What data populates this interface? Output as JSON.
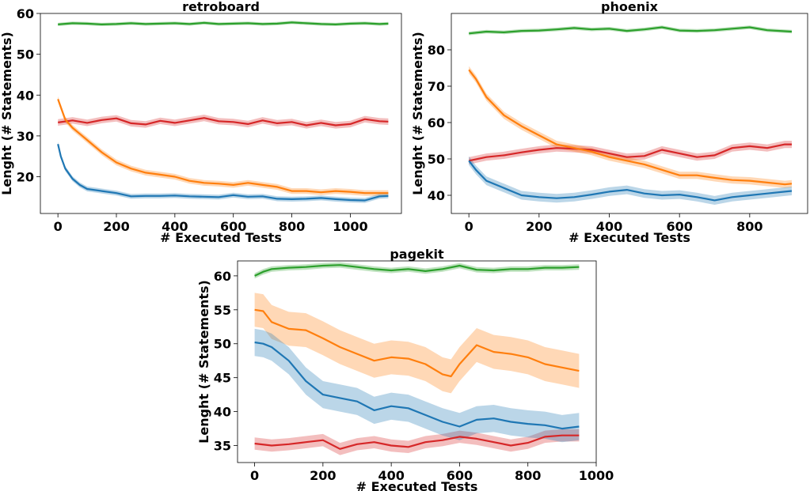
{
  "chart_data": [
    {
      "type": "line",
      "title": "retroboard",
      "xlabel": "# Executed Tests",
      "ylabel": "Lenght (# Statements)",
      "xlim": [
        -60,
        1175
      ],
      "ylim": [
        11,
        60
      ],
      "xticks": [
        0,
        200,
        400,
        600,
        800,
        1000
      ],
      "yticks": [
        20,
        30,
        40,
        50,
        60
      ],
      "grid": false,
      "legend": "none",
      "series": [
        {
          "color": "#2ca02c",
          "band": 0.4,
          "x": [
            0,
            50,
            100,
            150,
            200,
            250,
            300,
            350,
            400,
            450,
            500,
            550,
            600,
            650,
            700,
            750,
            800,
            850,
            900,
            950,
            1000,
            1050,
            1100,
            1130
          ],
          "y": [
            57.3,
            57.6,
            57.5,
            57.3,
            57.4,
            57.6,
            57.4,
            57.5,
            57.6,
            57.4,
            57.7,
            57.4,
            57.5,
            57.6,
            57.4,
            57.5,
            57.8,
            57.6,
            57.4,
            57.3,
            57.5,
            57.6,
            57.4,
            57.5
          ]
        },
        {
          "color": "#d62728",
          "band": 0.8,
          "x": [
            0,
            50,
            100,
            150,
            200,
            250,
            300,
            350,
            400,
            450,
            500,
            550,
            600,
            650,
            700,
            750,
            800,
            850,
            900,
            950,
            1000,
            1050,
            1100,
            1130
          ],
          "y": [
            33.3,
            33.8,
            33.2,
            33.9,
            34.3,
            33.1,
            32.8,
            33.7,
            33.2,
            33.8,
            34.4,
            33.6,
            33.4,
            32.9,
            33.8,
            33.1,
            33.4,
            32.6,
            33.2,
            32.6,
            32.9,
            34.1,
            33.6,
            33.5
          ]
        },
        {
          "color": "#ff7f0e",
          "band": 0.7,
          "x": [
            0,
            25,
            50,
            75,
            100,
            150,
            200,
            250,
            300,
            350,
            400,
            450,
            500,
            550,
            600,
            650,
            700,
            750,
            800,
            850,
            900,
            950,
            1000,
            1050,
            1100,
            1130
          ],
          "y": [
            39,
            34,
            32,
            30.5,
            29,
            26,
            23.5,
            22,
            21,
            20.5,
            20,
            19,
            18.5,
            18.3,
            18,
            18.5,
            18,
            17.5,
            16.5,
            16.5,
            16.2,
            16.5,
            16.3,
            16,
            16,
            16
          ]
        },
        {
          "color": "#1f77b4",
          "band": 0.6,
          "x": [
            0,
            10,
            25,
            50,
            75,
            100,
            150,
            200,
            250,
            300,
            350,
            400,
            450,
            500,
            550,
            600,
            650,
            700,
            750,
            800,
            850,
            900,
            950,
            1000,
            1050,
            1100,
            1130
          ],
          "y": [
            28,
            25,
            22,
            19.5,
            18,
            17,
            16.5,
            16,
            15.2,
            15.3,
            15.3,
            15.4,
            15.2,
            15.1,
            15,
            15.5,
            15.1,
            15.2,
            14.6,
            14.5,
            14.6,
            14.8,
            14.5,
            14.3,
            14.2,
            15.2,
            15.3
          ]
        }
      ]
    },
    {
      "type": "line",
      "title": "phoenix",
      "xlabel": "# Executed Tests",
      "ylabel": "Lenght (# Statements)",
      "xlim": [
        -50,
        965
      ],
      "ylim": [
        35,
        90
      ],
      "xticks": [
        0,
        200,
        400,
        600,
        800
      ],
      "yticks": [
        40,
        50,
        60,
        70,
        80
      ],
      "grid": false,
      "legend": "none",
      "series": [
        {
          "color": "#2ca02c",
          "band": 0.5,
          "x": [
            0,
            50,
            100,
            150,
            200,
            250,
            300,
            350,
            400,
            450,
            500,
            550,
            600,
            650,
            700,
            750,
            800,
            850,
            900,
            920
          ],
          "y": [
            84.5,
            85,
            84.8,
            85.2,
            85.3,
            85.6,
            86,
            85.6,
            85.8,
            85.2,
            85.6,
            86.2,
            85.3,
            85.2,
            85.4,
            85.8,
            86.2,
            85.4,
            85.1,
            85
          ]
        },
        {
          "color": "#d62728",
          "band": 1.0,
          "x": [
            0,
            50,
            100,
            150,
            200,
            250,
            300,
            350,
            400,
            450,
            500,
            550,
            600,
            650,
            700,
            750,
            800,
            850,
            900,
            920
          ],
          "y": [
            49.5,
            50.5,
            51,
            51.8,
            52.5,
            53,
            52.8,
            52.5,
            51.5,
            50.5,
            50.8,
            52.5,
            51.5,
            50.5,
            51,
            53,
            53.5,
            53,
            54,
            54
          ]
        },
        {
          "color": "#ff7f0e",
          "band": 1.0,
          "x": [
            0,
            20,
            50,
            100,
            150,
            200,
            250,
            300,
            350,
            400,
            450,
            500,
            550,
            600,
            650,
            700,
            750,
            800,
            850,
            900,
            920
          ],
          "y": [
            74.5,
            72,
            67,
            62,
            59,
            56.5,
            54,
            53,
            52,
            50.5,
            49.5,
            48.5,
            47,
            45.5,
            45.5,
            44.8,
            44.2,
            44,
            43.5,
            43,
            43.2
          ]
        },
        {
          "color": "#1f77b4",
          "band": 1.2,
          "x": [
            0,
            20,
            50,
            100,
            150,
            200,
            250,
            300,
            350,
            400,
            450,
            500,
            550,
            600,
            650,
            700,
            750,
            800,
            850,
            900,
            920
          ],
          "y": [
            49.5,
            47,
            44,
            42,
            40,
            39.5,
            39.2,
            39.5,
            40.2,
            41,
            41.5,
            40.5,
            40,
            40.2,
            39.5,
            38.6,
            39.5,
            40,
            40.5,
            41,
            41.2
          ]
        }
      ]
    },
    {
      "type": "line",
      "title": "pagekit",
      "xlabel": "# Executed Tests",
      "ylabel": "Lenght (# Statements)",
      "xlim": [
        -50,
        1000
      ],
      "ylim": [
        32.5,
        62.2
      ],
      "xticks": [
        0,
        200,
        400,
        600,
        800,
        1000
      ],
      "yticks": [
        35,
        40,
        45,
        50,
        55,
        60
      ],
      "grid": false,
      "legend": "none",
      "series": [
        {
          "color": "#2ca02c",
          "band": 0.4,
          "x": [
            0,
            25,
            50,
            100,
            150,
            200,
            250,
            300,
            350,
            400,
            450,
            500,
            550,
            600,
            650,
            700,
            750,
            800,
            850,
            900,
            950
          ],
          "y": [
            60,
            60.6,
            61,
            61.2,
            61.3,
            61.5,
            61.6,
            61.3,
            61,
            60.8,
            61,
            60.7,
            61,
            61.5,
            60.9,
            60.8,
            61,
            61,
            61.2,
            61.2,
            61.3
          ]
        },
        {
          "color": "#d62728",
          "band": 0.9,
          "x": [
            0,
            50,
            100,
            150,
            200,
            250,
            300,
            350,
            400,
            450,
            500,
            550,
            600,
            650,
            700,
            750,
            800,
            850,
            900,
            950
          ],
          "y": [
            35.3,
            35,
            35.2,
            35.5,
            35.8,
            34.5,
            35.2,
            35.5,
            35,
            34.8,
            35.5,
            35.8,
            36.3,
            36,
            35.5,
            35,
            35.4,
            36.3,
            36.5,
            36.5
          ]
        },
        {
          "color": "#ff7f0e",
          "band": 2.5,
          "x": [
            0,
            25,
            50,
            100,
            150,
            200,
            250,
            300,
            350,
            400,
            450,
            500,
            550,
            575,
            600,
            650,
            700,
            750,
            800,
            850,
            900,
            950
          ],
          "y": [
            55,
            54.8,
            53.2,
            52.2,
            52,
            50.8,
            49.5,
            48.5,
            47.5,
            48,
            47.8,
            47,
            45.5,
            45.2,
            47,
            49.8,
            48.8,
            48.5,
            48,
            47,
            46.5,
            46
          ]
        },
        {
          "color": "#1f77b4",
          "band": 2.0,
          "x": [
            0,
            25,
            50,
            100,
            150,
            200,
            250,
            300,
            350,
            400,
            450,
            500,
            550,
            600,
            650,
            700,
            750,
            800,
            850,
            900,
            950
          ],
          "y": [
            50.2,
            50,
            49.5,
            47.5,
            44.5,
            42.5,
            42,
            41.5,
            40.2,
            40.8,
            40.5,
            39.5,
            38.5,
            37.8,
            38.8,
            39,
            38.5,
            38.2,
            38,
            37.5,
            37.8
          ]
        }
      ]
    }
  ]
}
